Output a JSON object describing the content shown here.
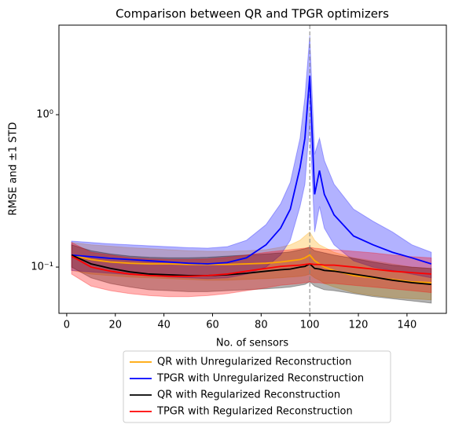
{
  "chart_data": {
    "type": "line",
    "title": "Comparison between QR and TPGR optimizers",
    "x_label": "No. of sensors",
    "y_label": "RMSE and ±1 STD",
    "y_scale": "log",
    "legend": "below",
    "vline": 100,
    "vline_color": "#808080",
    "band_opacity": 0.3,
    "x": [
      2,
      10,
      18,
      26,
      34,
      42,
      50,
      58,
      66,
      74,
      82,
      88,
      92,
      96,
      98,
      100,
      102,
      104,
      106,
      110,
      118,
      126,
      134,
      142,
      150
    ],
    "xlim": [
      -3.2,
      156.2
    ],
    "xticks": [
      0,
      20,
      40,
      60,
      80,
      100,
      120,
      140
    ],
    "ylim": [
      0.0497,
      3.87
    ],
    "yticks": [
      {
        "value": 0.1,
        "label": "10⁻¹"
      },
      {
        "value": 1,
        "label": "10⁰"
      }
    ],
    "series": [
      {
        "name": "QR with Unregularized Reconstruction",
        "color": "#ffa500",
        "values": [
          0.12,
          0.112,
          0.108,
          0.106,
          0.105,
          0.105,
          0.104,
          0.104,
          0.104,
          0.105,
          0.106,
          0.108,
          0.11,
          0.112,
          0.115,
          0.12,
          0.11,
          0.105,
          0.1,
          0.095,
          0.088,
          0.085,
          0.083,
          0.08,
          0.079
        ],
        "upper": [
          0.145,
          0.14,
          0.137,
          0.134,
          0.132,
          0.13,
          0.128,
          0.127,
          0.127,
          0.128,
          0.13,
          0.135,
          0.14,
          0.15,
          0.16,
          0.17,
          0.15,
          0.14,
          0.135,
          0.125,
          0.115,
          0.11,
          0.105,
          0.1,
          0.098
        ],
        "lower": [
          0.095,
          0.09,
          0.088,
          0.086,
          0.085,
          0.084,
          0.083,
          0.082,
          0.082,
          0.083,
          0.084,
          0.085,
          0.086,
          0.087,
          0.088,
          0.09,
          0.085,
          0.082,
          0.078,
          0.074,
          0.068,
          0.065,
          0.063,
          0.062,
          0.061
        ]
      },
      {
        "name": "TPGR with Unregularized Reconstruction",
        "color": "#0000ff",
        "values": [
          0.12,
          0.117,
          0.114,
          0.112,
          0.11,
          0.108,
          0.106,
          0.105,
          0.107,
          0.115,
          0.14,
          0.18,
          0.24,
          0.45,
          0.7,
          1.8,
          0.3,
          0.43,
          0.3,
          0.22,
          0.16,
          0.14,
          0.125,
          0.115,
          0.105
        ],
        "upper": [
          0.148,
          0.145,
          0.142,
          0.14,
          0.138,
          0.136,
          0.134,
          0.133,
          0.136,
          0.15,
          0.19,
          0.26,
          0.36,
          0.7,
          1.3,
          3.3,
          0.55,
          0.7,
          0.5,
          0.35,
          0.24,
          0.2,
          0.17,
          0.14,
          0.125
        ],
        "lower": [
          0.095,
          0.093,
          0.091,
          0.089,
          0.088,
          0.086,
          0.085,
          0.084,
          0.085,
          0.09,
          0.1,
          0.12,
          0.15,
          0.25,
          0.35,
          0.9,
          0.17,
          0.25,
          0.18,
          0.14,
          0.11,
          0.1,
          0.095,
          0.09,
          0.085
        ]
      },
      {
        "name": "QR with Regularized Reconstruction",
        "color": "#000000",
        "values": [
          0.12,
          0.105,
          0.098,
          0.093,
          0.09,
          0.089,
          0.088,
          0.088,
          0.089,
          0.091,
          0.094,
          0.096,
          0.097,
          0.1,
          0.101,
          0.105,
          0.098,
          0.097,
          0.095,
          0.094,
          0.09,
          0.086,
          0.082,
          0.079,
          0.077
        ],
        "upper": [
          0.14,
          0.128,
          0.122,
          0.118,
          0.116,
          0.115,
          0.115,
          0.116,
          0.118,
          0.12,
          0.122,
          0.124,
          0.126,
          0.13,
          0.132,
          0.135,
          0.128,
          0.126,
          0.124,
          0.12,
          0.114,
          0.108,
          0.103,
          0.1,
          0.098
        ],
        "lower": [
          0.1,
          0.085,
          0.078,
          0.074,
          0.071,
          0.07,
          0.069,
          0.069,
          0.07,
          0.071,
          0.072,
          0.073,
          0.074,
          0.076,
          0.077,
          0.08,
          0.075,
          0.073,
          0.071,
          0.07,
          0.067,
          0.064,
          0.062,
          0.06,
          0.058
        ]
      },
      {
        "name": "TPGR with Regularized Reconstruction",
        "color": "#ff0000",
        "values": [
          0.118,
          0.1,
          0.094,
          0.09,
          0.088,
          0.087,
          0.087,
          0.088,
          0.09,
          0.094,
          0.098,
          0.101,
          0.102,
          0.103,
          0.104,
          0.105,
          0.104,
          0.104,
          0.103,
          0.103,
          0.1,
          0.097,
          0.094,
          0.092,
          0.09
        ],
        "upper": [
          0.145,
          0.125,
          0.12,
          0.115,
          0.113,
          0.112,
          0.112,
          0.113,
          0.116,
          0.12,
          0.125,
          0.128,
          0.13,
          0.132,
          0.133,
          0.135,
          0.133,
          0.132,
          0.131,
          0.13,
          0.127,
          0.124,
          0.12,
          0.117,
          0.115
        ],
        "lower": [
          0.09,
          0.075,
          0.07,
          0.067,
          0.065,
          0.064,
          0.064,
          0.065,
          0.067,
          0.07,
          0.073,
          0.076,
          0.077,
          0.078,
          0.079,
          0.08,
          0.079,
          0.079,
          0.078,
          0.078,
          0.076,
          0.074,
          0.072,
          0.07,
          0.068
        ]
      }
    ]
  }
}
